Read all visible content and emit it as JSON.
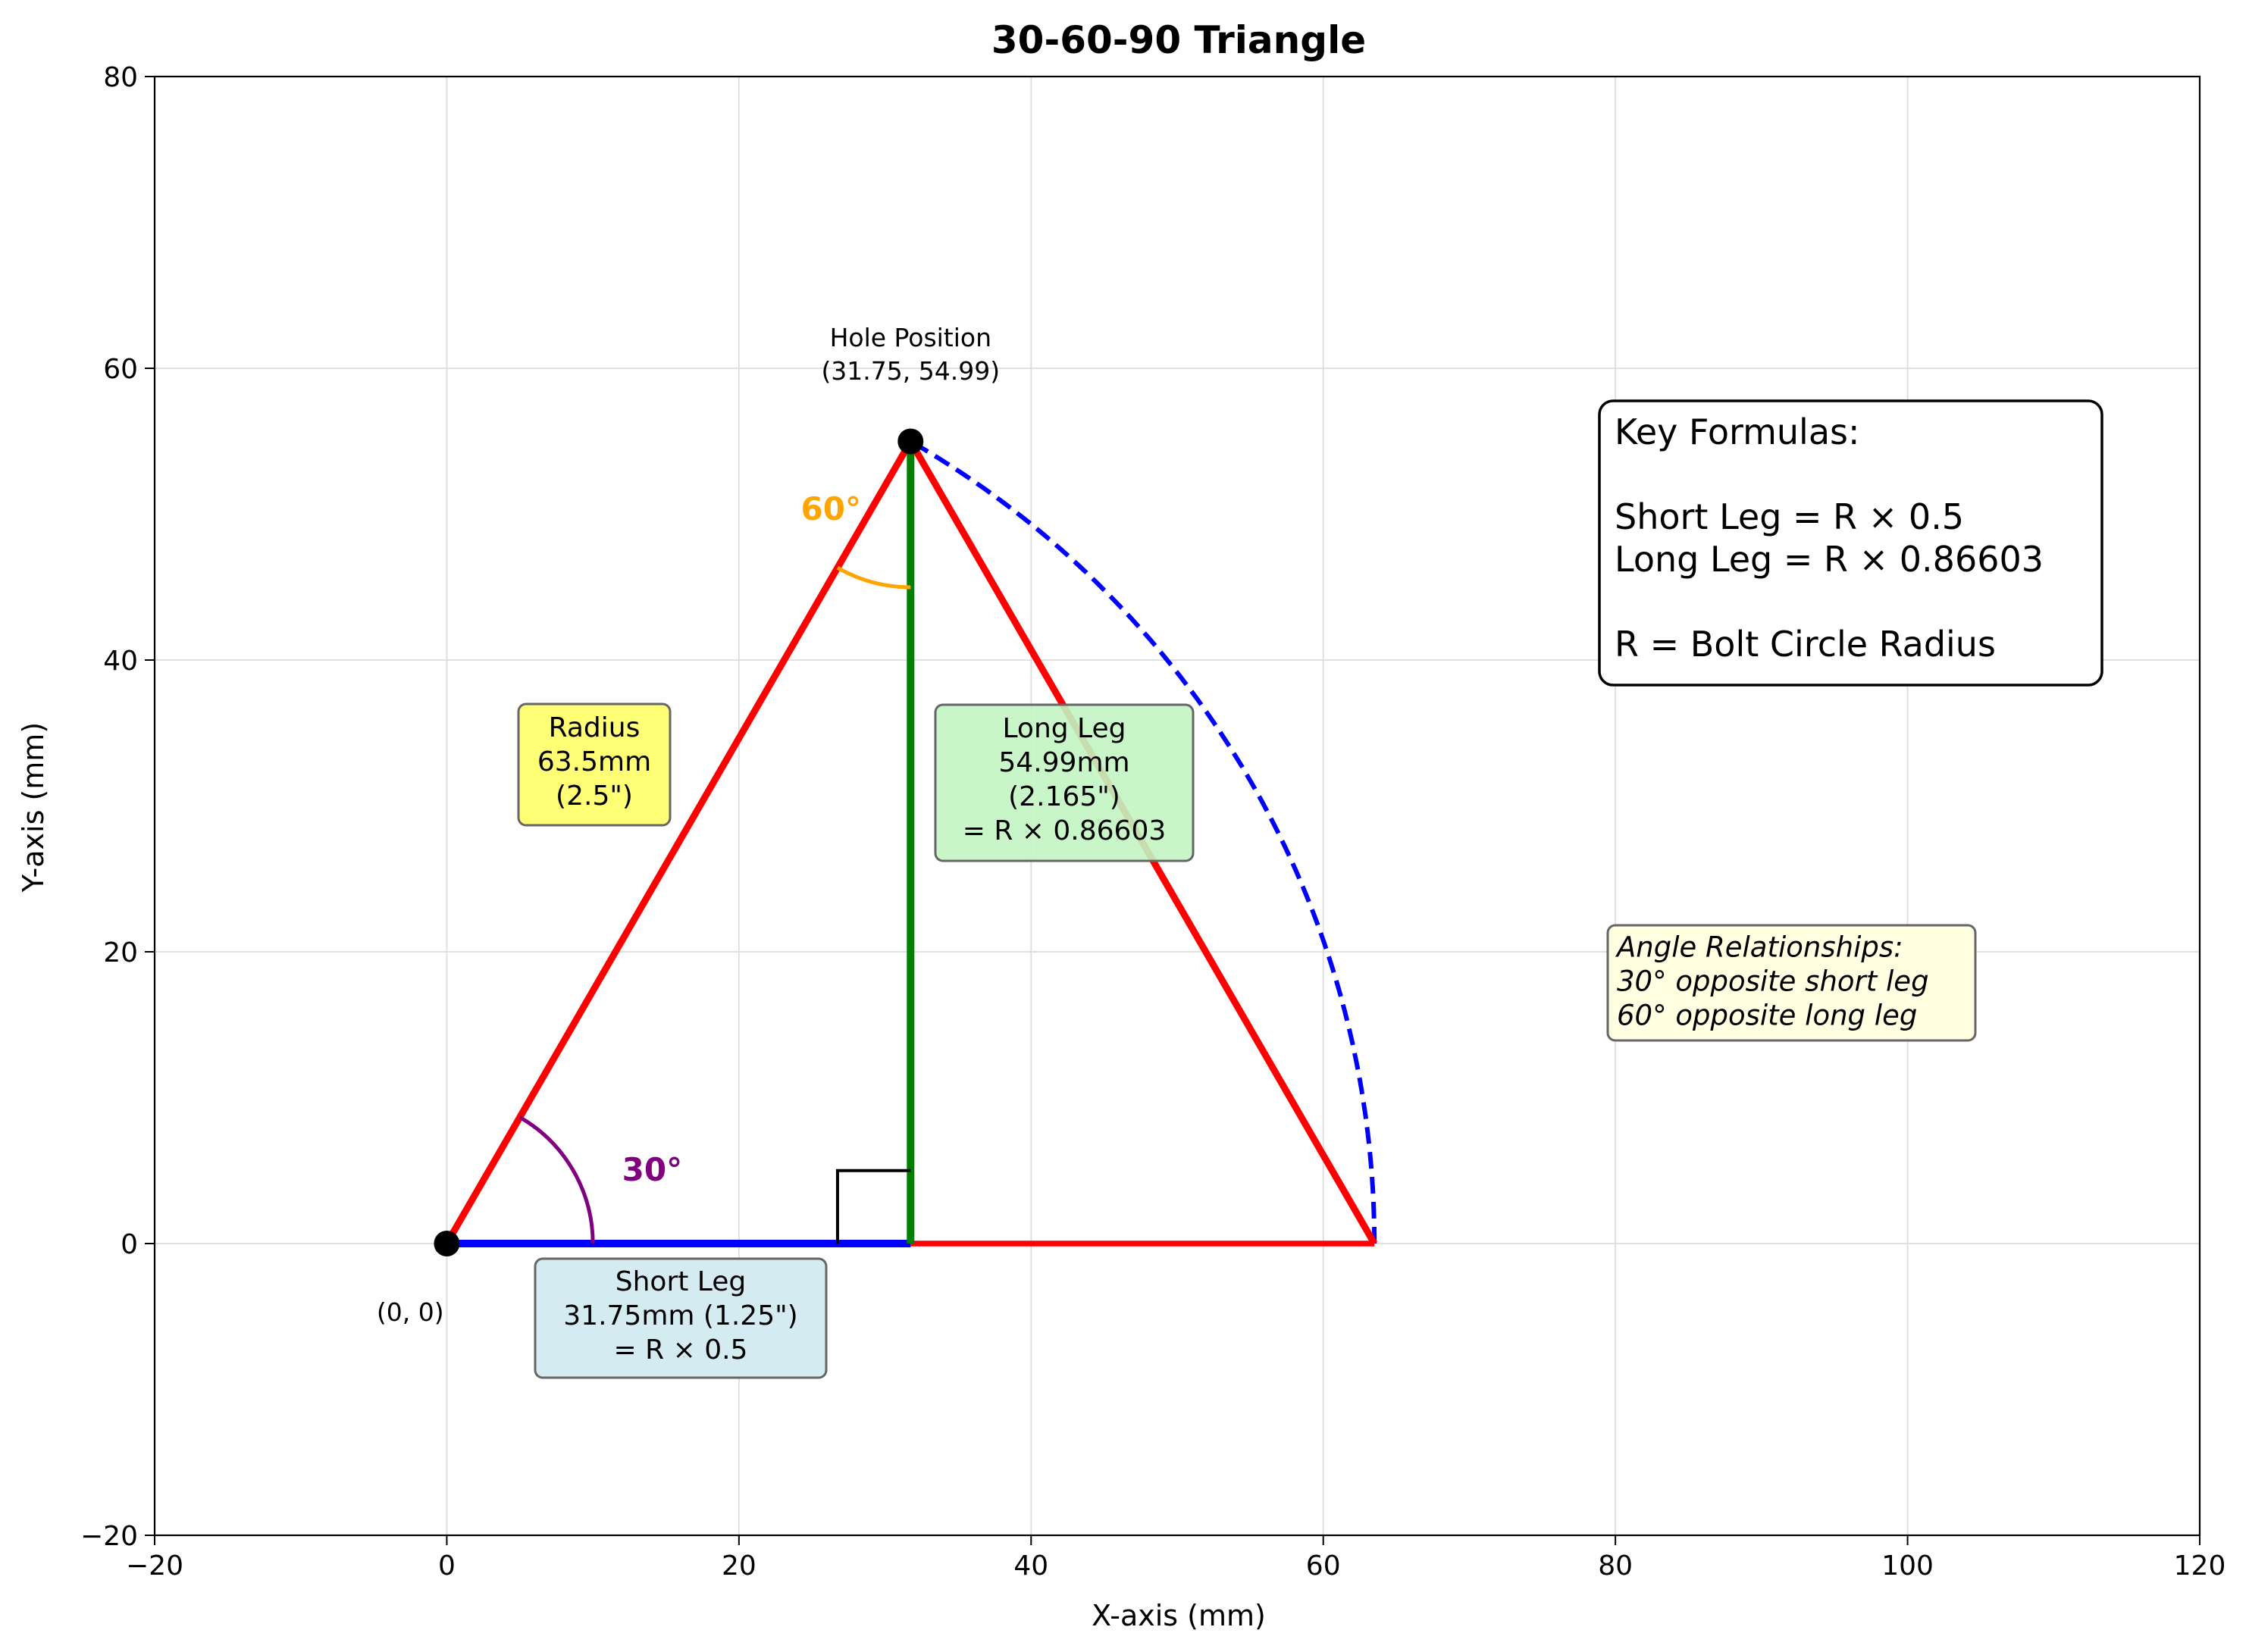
{
  "chart_data": {
    "type": "line",
    "title": "30-60-90 Triangle",
    "xlabel": "X-axis (mm)",
    "ylabel": "Y-axis (mm)",
    "xlim": [
      -20,
      120
    ],
    "ylim": [
      -20,
      80
    ],
    "xticks": [
      -20,
      0,
      20,
      40,
      60,
      80,
      100,
      120
    ],
    "yticks": [
      -20,
      0,
      20,
      40,
      60,
      80
    ],
    "grid": true,
    "segments": [
      {
        "id": "radius-line",
        "color": "#ff0000",
        "x": [
          0,
          31.75
        ],
        "y": [
          0,
          54.99
        ]
      },
      {
        "id": "right-side-line",
        "color": "#ff0000",
        "x": [
          31.75,
          63.5
        ],
        "y": [
          54.99,
          0
        ]
      },
      {
        "id": "base-line-right",
        "color": "#ff0000",
        "x": [
          31.75,
          63.5
        ],
        "y": [
          0,
          0
        ]
      },
      {
        "id": "short-leg-line",
        "color": "#0000ff",
        "x": [
          0,
          31.75
        ],
        "y": [
          0,
          0
        ]
      },
      {
        "id": "long-leg-line",
        "color": "#008000",
        "x": [
          31.75,
          31.75
        ],
        "y": [
          0,
          54.99
        ]
      }
    ],
    "arc": {
      "color": "#0000ff",
      "style": "dashed",
      "radius": 63.5,
      "from_deg": 0,
      "to_deg": 60
    },
    "points": [
      {
        "id": "origin",
        "x": 0,
        "y": 0,
        "label": "(0, 0)"
      },
      {
        "id": "hole",
        "x": 31.75,
        "y": 54.99,
        "label_lines": [
          "Hole Position",
          "(31.75, 54.99)"
        ]
      }
    ],
    "angles": [
      {
        "id": "angle-30",
        "label": "30°",
        "color": "#800080"
      },
      {
        "id": "angle-60",
        "label": "60°",
        "color": "#ffa500"
      }
    ],
    "annotations": {
      "radius": {
        "lines": [
          "Radius",
          "63.5mm",
          "(2.5\")"
        ],
        "fill": "#ffff66"
      },
      "long_leg": {
        "lines": [
          "Long Leg",
          "54.99mm",
          "(2.165\")",
          "= R × 0.86603"
        ],
        "fill": "#c2f5c2"
      },
      "short_leg": {
        "lines": [
          "Short Leg",
          "31.75mm (1.25\")",
          "= R × 0.5"
        ],
        "fill": "#d3eaf1"
      },
      "formulas": {
        "lines": [
          "Key Formulas:",
          "",
          "Short Leg = R × 0.5",
          "Long Leg = R × 0.86603",
          "",
          "R = Bolt Circle Radius"
        ]
      },
      "angles_note": {
        "lines": [
          "Angle Relationships:",
          "30° opposite short leg",
          "60° opposite long leg"
        ],
        "fill": "#ffffe0"
      }
    }
  }
}
